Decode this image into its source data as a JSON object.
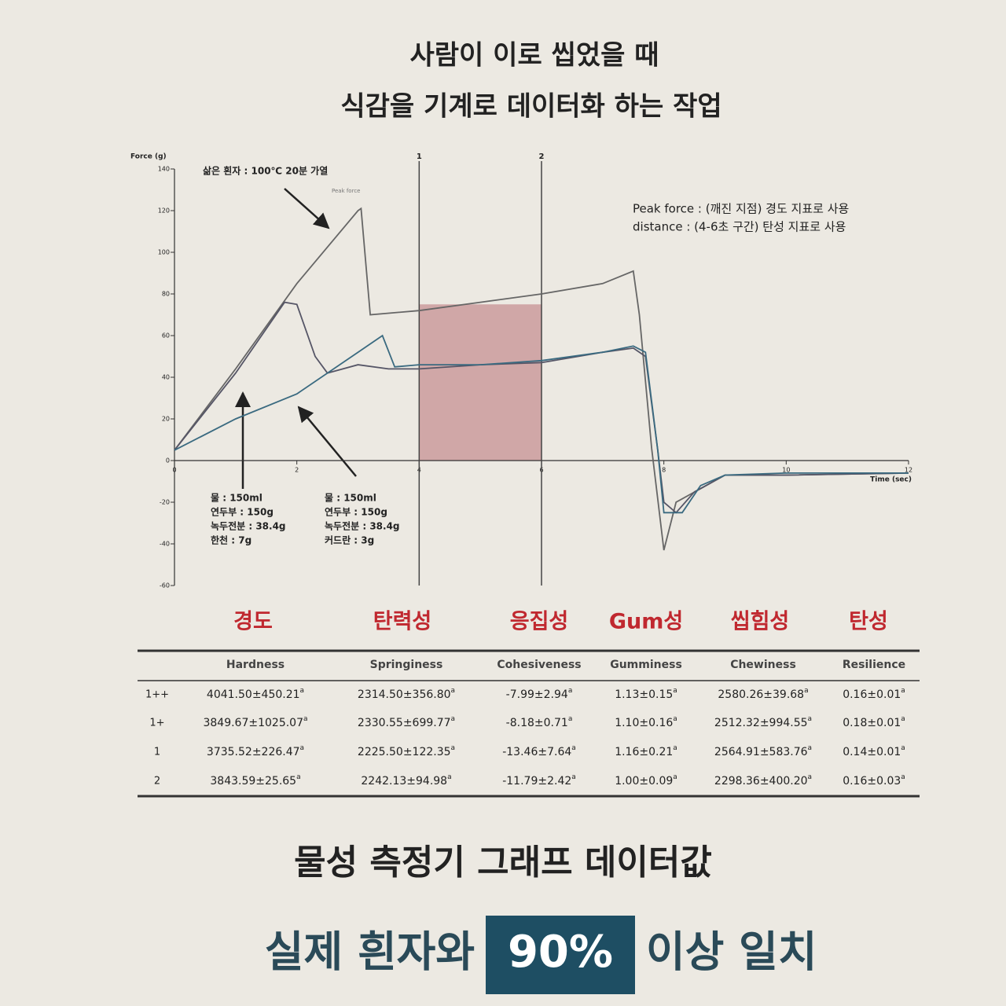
{
  "header": {
    "title_lines": [
      "사람이 이로 씹었을 때",
      "식감을 기계로 데이터화 하는 작업"
    ]
  },
  "chart_data": {
    "type": "line",
    "y_label": "Force (g)",
    "x_label": "Time (sec)",
    "xlim": [
      0,
      12
    ],
    "xticks": [
      0,
      2,
      4,
      6,
      8,
      10,
      12
    ],
    "ylim": [
      -60,
      140
    ],
    "yticks": [
      -60,
      -40,
      -20,
      0,
      20,
      40,
      60,
      80,
      100,
      120,
      140
    ],
    "markers": [
      {
        "value": 4,
        "label": "1"
      },
      {
        "value": 6,
        "label": "2"
      }
    ],
    "shaded_region": {
      "x": [
        4,
        6
      ],
      "y": [
        0,
        75
      ],
      "color": "#c48a8f"
    },
    "series": [
      {
        "color": "#666666",
        "x": [
          0,
          1,
          2,
          3,
          3.05,
          3.2,
          4,
          5,
          6,
          7,
          7.5,
          7.6,
          7.8,
          8,
          8.2,
          9,
          10,
          12
        ],
        "values": [
          5,
          44,
          85,
          120,
          121,
          70,
          72,
          76,
          80,
          85,
          91,
          70,
          6,
          -43,
          -20,
          -7,
          -7,
          -6
        ]
      },
      {
        "color": "#555566",
        "x": [
          0,
          1,
          1.8,
          2,
          2.3,
          2.5,
          3,
          3.5,
          4,
          5,
          6,
          7,
          7.5,
          7.7,
          7.9,
          8,
          8.2,
          8.5,
          9,
          10,
          12
        ],
        "values": [
          5,
          42,
          76,
          75,
          50,
          42,
          46,
          44,
          44,
          46,
          47,
          52,
          54,
          50,
          5,
          -20,
          -25,
          -15,
          -7,
          -7,
          -6
        ]
      },
      {
        "color": "#3a6a80",
        "x": [
          0,
          1,
          2,
          3,
          3.4,
          3.6,
          4,
          5,
          6,
          7,
          7.5,
          7.7,
          7.9,
          8,
          8.3,
          8.6,
          9,
          10,
          12
        ],
        "values": [
          5,
          20,
          32,
          52,
          60,
          45,
          46,
          46,
          48,
          52,
          55,
          52,
          5,
          -25,
          -25,
          -12,
          -7,
          -6,
          -6
        ]
      }
    ],
    "annotations": {
      "egg_white": "삶은 흰자 : 100℃ 20분 가열",
      "peak": "Peak force",
      "notes": [
        "Peak force : (깨진 지점) 경도 지표로 사용",
        "distance : (4-6초 구간) 탄성 지표로 사용"
      ],
      "recipes": [
        [
          "물 : 150ml",
          "연두부 : 150g",
          "녹두전분 : 38.4g",
          "한천 : 7g"
        ],
        [
          "물 : 150ml",
          "연두부 : 150g",
          "녹두전분 : 38.4g",
          "커드란 : 3g"
        ]
      ]
    }
  },
  "table": {
    "header_kr": [
      "경도",
      "탄력성",
      "응집성",
      "Gum성",
      "씹힘성",
      "탄성"
    ],
    "columns": [
      "Hardness",
      "Springiness",
      "Cohesiveness",
      "Gumminess",
      "Chewiness",
      "Resilience"
    ],
    "rows": [
      {
        "label": "1++",
        "cells": [
          {
            "text": "4041.50±450.21",
            "sup": "a"
          },
          {
            "text": "2314.50±356.80",
            "sup": "a"
          },
          {
            "text": "-7.99±2.94",
            "sup": "a"
          },
          {
            "text": "1.13±0.15",
            "sup": "a"
          },
          {
            "text": "2580.26±39.68",
            "sup": "a"
          },
          {
            "text": "0.16±0.01",
            "sup": "a"
          }
        ]
      },
      {
        "label": "1+",
        "cells": [
          {
            "text": "3849.67±1025.07",
            "sup": "a"
          },
          {
            "text": "2330.55±699.77",
            "sup": "a"
          },
          {
            "text": "-8.18±0.71",
            "sup": "a"
          },
          {
            "text": "1.10±0.16",
            "sup": "a"
          },
          {
            "text": "2512.32±994.55",
            "sup": "a"
          },
          {
            "text": "0.18±0.01",
            "sup": "a"
          }
        ]
      },
      {
        "label": "1",
        "cells": [
          {
            "text": "3735.52±226.47",
            "sup": "a"
          },
          {
            "text": "2225.50±122.35",
            "sup": "a"
          },
          {
            "text": "-13.46±7.64",
            "sup": "a"
          },
          {
            "text": "1.16±0.21",
            "sup": "a"
          },
          {
            "text": "2564.91±583.76",
            "sup": "a"
          },
          {
            "text": "0.14±0.01",
            "sup": "a"
          }
        ]
      },
      {
        "label": "2",
        "cells": [
          {
            "text": "3843.59±25.65",
            "sup": "a"
          },
          {
            "text": "2242.13±94.98",
            "sup": "a"
          },
          {
            "text": "-11.79±2.42",
            "sup": "a"
          },
          {
            "text": "1.00±0.09",
            "sup": "a"
          },
          {
            "text": "2298.36±400.20",
            "sup": "a"
          },
          {
            "text": "0.16±0.03",
            "sup": "a"
          }
        ]
      }
    ]
  },
  "footer": {
    "subtitle": "물성 측정기 그래프 데이터값",
    "claim": [
      "실제 흰자와",
      "90%",
      "이상 일치"
    ]
  }
}
